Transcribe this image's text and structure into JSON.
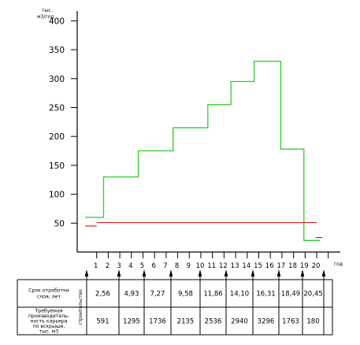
{
  "chart_data": {
    "type": "line",
    "y_unit_line1": "тыс.",
    "y_unit_line2": "м3/год",
    "x_unit": "год",
    "y_ticks": [
      50,
      100,
      150,
      200,
      250,
      300,
      350,
      400
    ],
    "ylim": [
      0,
      400
    ],
    "x_ticks": [
      "1",
      "2",
      "3",
      "4",
      "5",
      "6",
      "7",
      "8",
      "9",
      "10",
      "11",
      "12",
      "13",
      "14",
      "15",
      "16",
      "17",
      "18",
      "19",
      "20"
    ],
    "xlim": [
      0,
      21
    ],
    "green_series": {
      "color": "#2ecc2e",
      "points": [
        [
          0,
          60
        ],
        [
          1.6,
          60
        ],
        [
          1.6,
          130
        ],
        [
          4.6,
          130
        ],
        [
          4.6,
          175
        ],
        [
          7.6,
          175
        ],
        [
          7.6,
          215
        ],
        [
          10.6,
          215
        ],
        [
          10.6,
          255
        ],
        [
          12.6,
          255
        ],
        [
          12.6,
          295
        ],
        [
          14.6,
          295
        ],
        [
          14.6,
          330
        ],
        [
          16.9,
          330
        ],
        [
          16.9,
          178
        ],
        [
          18.9,
          178
        ],
        [
          18.9,
          20
        ],
        [
          20.3,
          20
        ]
      ]
    },
    "red_series": {
      "color": "#d42020",
      "segments": [
        [
          [
            0,
            45
          ],
          [
            1.0,
            45
          ]
        ],
        [
          [
            1.0,
            51
          ],
          [
            20.0,
            51
          ]
        ],
        [
          [
            19.9,
            25
          ],
          [
            20.5,
            25
          ]
        ]
      ]
    },
    "grid": false,
    "legend": "none"
  },
  "table": {
    "rows": [
      {
        "label_lines": [
          "Срок отработки",
          "слоя, лет"
        ],
        "values": [
          "2,56",
          "4,93",
          "7,27",
          "9,58",
          "11,86",
          "14,10",
          "16,31",
          "18,49",
          "20,45"
        ]
      },
      {
        "label_lines": [
          "Требуемая",
          "производитель-",
          "ность карьера",
          "по вскрыше,",
          "тыс. м3"
        ],
        "values": [
          "591",
          "1295",
          "1736",
          "2135",
          "2536",
          "2940",
          "3296",
          "1763",
          "180"
        ]
      }
    ],
    "rotated_label": "строительство"
  }
}
